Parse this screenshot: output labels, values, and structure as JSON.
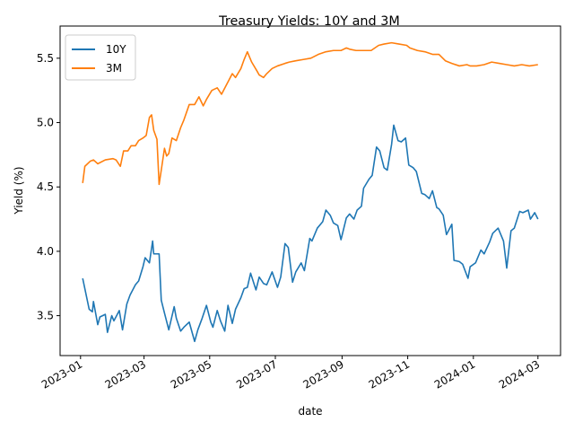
{
  "chart_data": {
    "type": "line",
    "title": "Treasury Yields: 10Y and 3M",
    "xlabel": "date",
    "ylabel": "Yield (%)",
    "xlim": [
      "2022-12-13",
      "2024-03-22"
    ],
    "ylim": [
      3.19,
      5.75
    ],
    "x_ticks": [
      "2023-01",
      "2023-03",
      "2023-05",
      "2023-07",
      "2023-09",
      "2023-11",
      "2024-01",
      "2024-03"
    ],
    "x_tick_dates": [
      "2023-01-01",
      "2023-03-01",
      "2023-05-01",
      "2023-07-01",
      "2023-09-01",
      "2023-11-01",
      "2024-01-01",
      "2024-03-01"
    ],
    "y_ticks": [
      "3.5",
      "4.0",
      "4.5",
      "5.0",
      "5.5"
    ],
    "y_tick_values": [
      3.5,
      4.0,
      4.5,
      5.0,
      5.5
    ],
    "legend_position": "upper-left",
    "grid": false,
    "series": [
      {
        "name": "10Y",
        "color": "#1f77b4",
        "points": [
          [
            "2023-01-03",
            3.79
          ],
          [
            "2023-01-05",
            3.71
          ],
          [
            "2023-01-09",
            3.55
          ],
          [
            "2023-01-12",
            3.53
          ],
          [
            "2023-01-13",
            3.61
          ],
          [
            "2023-01-17",
            3.43
          ],
          [
            "2023-01-19",
            3.49
          ],
          [
            "2023-01-24",
            3.51
          ],
          [
            "2023-01-26",
            3.37
          ],
          [
            "2023-01-30",
            3.5
          ],
          [
            "2023-02-01",
            3.46
          ],
          [
            "2023-02-06",
            3.54
          ],
          [
            "2023-02-09",
            3.39
          ],
          [
            "2023-02-13",
            3.59
          ],
          [
            "2023-02-16",
            3.66
          ],
          [
            "2023-02-21",
            3.74
          ],
          [
            "2023-02-24",
            3.77
          ],
          [
            "2023-02-28",
            3.88
          ],
          [
            "2023-03-02",
            3.95
          ],
          [
            "2023-03-06",
            3.91
          ],
          [
            "2023-03-09",
            4.08
          ],
          [
            "2023-03-10",
            3.98
          ],
          [
            "2023-03-15",
            3.98
          ],
          [
            "2023-03-17",
            3.62
          ],
          [
            "2023-03-20",
            3.52
          ],
          [
            "2023-03-24",
            3.39
          ],
          [
            "2023-03-29",
            3.57
          ],
          [
            "2023-03-31",
            3.48
          ],
          [
            "2023-04-04",
            3.38
          ],
          [
            "2023-04-07",
            3.41
          ],
          [
            "2023-04-12",
            3.45
          ],
          [
            "2023-04-17",
            3.3
          ],
          [
            "2023-04-20",
            3.39
          ],
          [
            "2023-04-24",
            3.48
          ],
          [
            "2023-04-28",
            3.58
          ],
          [
            "2023-05-02",
            3.45
          ],
          [
            "2023-05-04",
            3.41
          ],
          [
            "2023-05-08",
            3.54
          ],
          [
            "2023-05-11",
            3.46
          ],
          [
            "2023-05-15",
            3.38
          ],
          [
            "2023-05-18",
            3.58
          ],
          [
            "2023-05-22",
            3.44
          ],
          [
            "2023-05-25",
            3.55
          ],
          [
            "2023-05-30",
            3.64
          ],
          [
            "2023-06-02",
            3.71
          ],
          [
            "2023-06-05",
            3.72
          ],
          [
            "2023-06-08",
            3.83
          ],
          [
            "2023-06-13",
            3.7
          ],
          [
            "2023-06-16",
            3.8
          ],
          [
            "2023-06-20",
            3.75
          ],
          [
            "2023-06-23",
            3.74
          ],
          [
            "2023-06-28",
            3.84
          ],
          [
            "2023-07-03",
            3.72
          ],
          [
            "2023-07-06",
            3.8
          ],
          [
            "2023-07-10",
            4.06
          ],
          [
            "2023-07-13",
            4.03
          ],
          [
            "2023-07-17",
            3.76
          ],
          [
            "2023-07-20",
            3.84
          ],
          [
            "2023-07-25",
            3.91
          ],
          [
            "2023-07-28",
            3.85
          ],
          [
            "2023-08-02",
            4.1
          ],
          [
            "2023-08-04",
            4.08
          ],
          [
            "2023-08-09",
            4.18
          ],
          [
            "2023-08-14",
            4.23
          ],
          [
            "2023-08-17",
            4.32
          ],
          [
            "2023-08-21",
            4.28
          ],
          [
            "2023-08-24",
            4.22
          ],
          [
            "2023-08-28",
            4.2
          ],
          [
            "2023-08-31",
            4.09
          ],
          [
            "2023-09-05",
            4.26
          ],
          [
            "2023-09-08",
            4.29
          ],
          [
            "2023-09-12",
            4.25
          ],
          [
            "2023-09-15",
            4.32
          ],
          [
            "2023-09-19",
            4.35
          ],
          [
            "2023-09-21",
            4.49
          ],
          [
            "2023-09-26",
            4.56
          ],
          [
            "2023-09-29",
            4.59
          ],
          [
            "2023-10-03",
            4.81
          ],
          [
            "2023-10-06",
            4.78
          ],
          [
            "2023-10-10",
            4.65
          ],
          [
            "2023-10-13",
            4.63
          ],
          [
            "2023-10-17",
            4.83
          ],
          [
            "2023-10-19",
            4.98
          ],
          [
            "2023-10-23",
            4.86
          ],
          [
            "2023-10-26",
            4.85
          ],
          [
            "2023-10-30",
            4.88
          ],
          [
            "2023-11-02",
            4.67
          ],
          [
            "2023-11-06",
            4.65
          ],
          [
            "2023-11-09",
            4.62
          ],
          [
            "2023-11-14",
            4.45
          ],
          [
            "2023-11-17",
            4.44
          ],
          [
            "2023-11-21",
            4.41
          ],
          [
            "2023-11-24",
            4.47
          ],
          [
            "2023-11-28",
            4.34
          ],
          [
            "2023-11-30",
            4.33
          ],
          [
            "2023-12-04",
            4.28
          ],
          [
            "2023-12-07",
            4.13
          ],
          [
            "2023-12-12",
            4.21
          ],
          [
            "2023-12-14",
            3.93
          ],
          [
            "2023-12-19",
            3.92
          ],
          [
            "2023-12-22",
            3.9
          ],
          [
            "2023-12-27",
            3.79
          ],
          [
            "2023-12-29",
            3.88
          ],
          [
            "2024-01-03",
            3.91
          ],
          [
            "2024-01-08",
            4.01
          ],
          [
            "2024-01-11",
            3.98
          ],
          [
            "2024-01-16",
            4.07
          ],
          [
            "2024-01-19",
            4.14
          ],
          [
            "2024-01-24",
            4.18
          ],
          [
            "2024-01-29",
            4.08
          ],
          [
            "2024-02-01",
            3.87
          ],
          [
            "2024-02-05",
            4.16
          ],
          [
            "2024-02-08",
            4.18
          ],
          [
            "2024-02-13",
            4.31
          ],
          [
            "2024-02-16",
            4.3
          ],
          [
            "2024-02-21",
            4.32
          ],
          [
            "2024-02-23",
            4.25
          ],
          [
            "2024-02-27",
            4.3
          ],
          [
            "2024-03-01",
            4.25
          ]
        ]
      },
      {
        "name": "3M",
        "color": "#ff7f0e",
        "points": [
          [
            "2023-01-03",
            4.53
          ],
          [
            "2023-01-05",
            4.66
          ],
          [
            "2023-01-10",
            4.7
          ],
          [
            "2023-01-13",
            4.71
          ],
          [
            "2023-01-17",
            4.68
          ],
          [
            "2023-01-24",
            4.71
          ],
          [
            "2023-01-31",
            4.72
          ],
          [
            "2023-02-03",
            4.71
          ],
          [
            "2023-02-07",
            4.66
          ],
          [
            "2023-02-10",
            4.78
          ],
          [
            "2023-02-14",
            4.78
          ],
          [
            "2023-02-17",
            4.82
          ],
          [
            "2023-02-21",
            4.82
          ],
          [
            "2023-02-24",
            4.86
          ],
          [
            "2023-02-28",
            4.88
          ],
          [
            "2023-03-03",
            4.9
          ],
          [
            "2023-03-06",
            5.04
          ],
          [
            "2023-03-08",
            5.06
          ],
          [
            "2023-03-10",
            4.94
          ],
          [
            "2023-03-13",
            4.87
          ],
          [
            "2023-03-15",
            4.52
          ],
          [
            "2023-03-17",
            4.63
          ],
          [
            "2023-03-20",
            4.8
          ],
          [
            "2023-03-22",
            4.74
          ],
          [
            "2023-03-24",
            4.76
          ],
          [
            "2023-03-27",
            4.88
          ],
          [
            "2023-03-31",
            4.86
          ],
          [
            "2023-04-04",
            4.96
          ],
          [
            "2023-04-07",
            5.02
          ],
          [
            "2023-04-12",
            5.14
          ],
          [
            "2023-04-17",
            5.14
          ],
          [
            "2023-04-21",
            5.2
          ],
          [
            "2023-04-25",
            5.13
          ],
          [
            "2023-04-28",
            5.18
          ],
          [
            "2023-05-03",
            5.25
          ],
          [
            "2023-05-08",
            5.27
          ],
          [
            "2023-05-12",
            5.22
          ],
          [
            "2023-05-17",
            5.3
          ],
          [
            "2023-05-22",
            5.38
          ],
          [
            "2023-05-25",
            5.35
          ],
          [
            "2023-05-30",
            5.42
          ],
          [
            "2023-06-02",
            5.49
          ],
          [
            "2023-06-05",
            5.55
          ],
          [
            "2023-06-09",
            5.47
          ],
          [
            "2023-06-14",
            5.4
          ],
          [
            "2023-06-16",
            5.37
          ],
          [
            "2023-06-20",
            5.35
          ],
          [
            "2023-06-23",
            5.38
          ],
          [
            "2023-06-28",
            5.42
          ],
          [
            "2023-07-03",
            5.44
          ],
          [
            "2023-07-10",
            5.46
          ],
          [
            "2023-07-14",
            5.47
          ],
          [
            "2023-07-20",
            5.48
          ],
          [
            "2023-07-27",
            5.49
          ],
          [
            "2023-08-03",
            5.5
          ],
          [
            "2023-08-10",
            5.53
          ],
          [
            "2023-08-17",
            5.55
          ],
          [
            "2023-08-24",
            5.56
          ],
          [
            "2023-08-31",
            5.56
          ],
          [
            "2023-09-05",
            5.58
          ],
          [
            "2023-09-08",
            5.57
          ],
          [
            "2023-09-14",
            5.56
          ],
          [
            "2023-09-21",
            5.56
          ],
          [
            "2023-09-28",
            5.56
          ],
          [
            "2023-10-05",
            5.6
          ],
          [
            "2023-10-10",
            5.61
          ],
          [
            "2023-10-17",
            5.62
          ],
          [
            "2023-10-24",
            5.61
          ],
          [
            "2023-10-31",
            5.6
          ],
          [
            "2023-11-03",
            5.58
          ],
          [
            "2023-11-10",
            5.56
          ],
          [
            "2023-11-17",
            5.55
          ],
          [
            "2023-11-24",
            5.53
          ],
          [
            "2023-11-30",
            5.53
          ],
          [
            "2023-12-06",
            5.48
          ],
          [
            "2023-12-12",
            5.46
          ],
          [
            "2023-12-19",
            5.44
          ],
          [
            "2023-12-26",
            5.45
          ],
          [
            "2023-12-29",
            5.44
          ],
          [
            "2024-01-04",
            5.44
          ],
          [
            "2024-01-11",
            5.45
          ],
          [
            "2024-01-18",
            5.47
          ],
          [
            "2024-01-25",
            5.46
          ],
          [
            "2024-02-01",
            5.45
          ],
          [
            "2024-02-08",
            5.44
          ],
          [
            "2024-02-15",
            5.45
          ],
          [
            "2024-02-22",
            5.44
          ],
          [
            "2024-03-01",
            5.45
          ]
        ]
      }
    ]
  }
}
